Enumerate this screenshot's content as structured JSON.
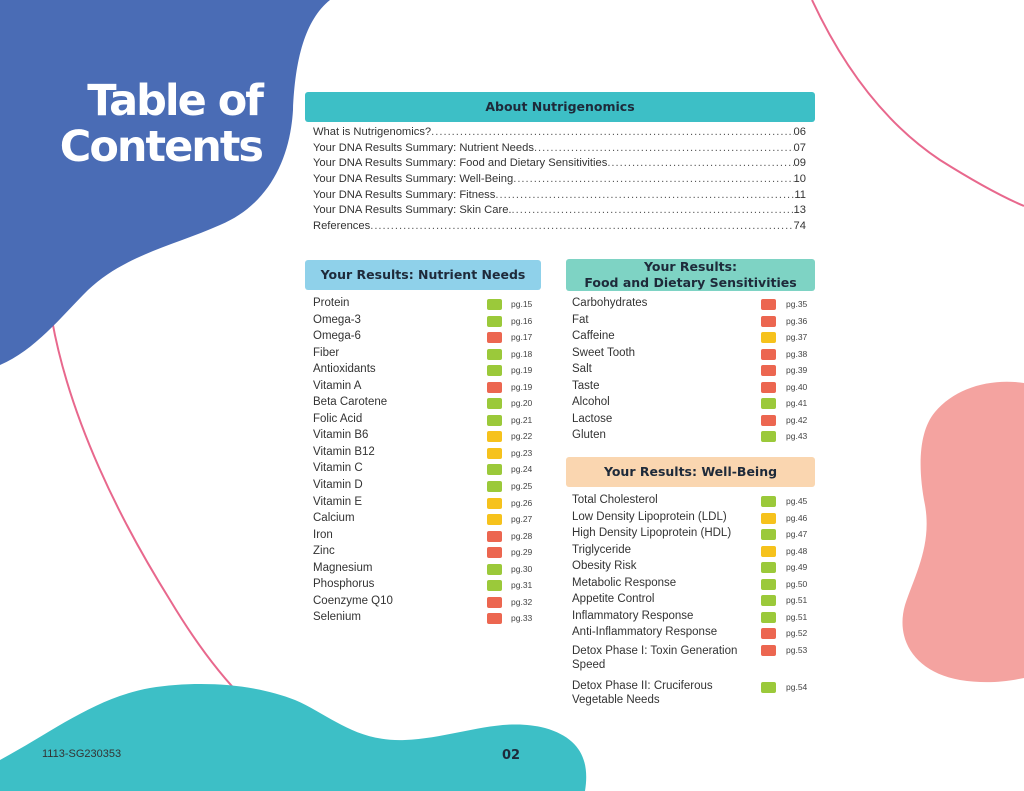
{
  "title": {
    "line1": "Table of",
    "line2": "Contents"
  },
  "colors": {
    "blue_blob": "#4a6cb5",
    "teal_blob": "#3dbfc6",
    "pink_blob": "#f4a3a0",
    "accent_line": "#e8688d",
    "green": "#9bc93a",
    "yellow": "#f6c21c",
    "red": "#ec6650"
  },
  "about": {
    "header": "About Nutrigenomics",
    "items": [
      {
        "label": "What is Nutrigenomics?",
        "page": "06"
      },
      {
        "label": "Your DNA Results Summary: Nutrient Needs",
        "page": "07"
      },
      {
        "label": "Your DNA Results Summary: Food and Dietary Sensitivities",
        "page": "09"
      },
      {
        "label": "Your DNA Results Summary: Well-Being",
        "page": "10"
      },
      {
        "label": "Your DNA Results Summary: Fitness",
        "page": "11"
      },
      {
        "label": "Your DNA Results Summary: Skin Care.",
        "page": "13"
      },
      {
        "label": "References",
        "page": "74"
      }
    ]
  },
  "nutrient": {
    "header": "Your Results: Nutrient Needs",
    "items": [
      {
        "name": "Protein",
        "status": "green",
        "page": "pg.15"
      },
      {
        "name": "Omega-3",
        "status": "green",
        "page": "pg.16"
      },
      {
        "name": "Omega-6",
        "status": "red",
        "page": "pg.17"
      },
      {
        "name": "Fiber",
        "status": "green",
        "page": "pg.18"
      },
      {
        "name": "Antioxidants",
        "status": "green",
        "page": "pg.19"
      },
      {
        "name": "Vitamin A",
        "status": "red",
        "page": "pg.19"
      },
      {
        "name": "Beta Carotene",
        "status": "green",
        "page": "pg.20"
      },
      {
        "name": "Folic Acid",
        "status": "green",
        "page": "pg.21"
      },
      {
        "name": "Vitamin B6",
        "status": "yellow",
        "page": "pg.22"
      },
      {
        "name": "Vitamin B12",
        "status": "yellow",
        "page": "pg.23"
      },
      {
        "name": "Vitamin C",
        "status": "green",
        "page": "pg.24"
      },
      {
        "name": "Vitamin D",
        "status": "green",
        "page": "pg.25"
      },
      {
        "name": "Vitamin E",
        "status": "yellow",
        "page": "pg.26"
      },
      {
        "name": "Calcium",
        "status": "yellow",
        "page": "pg.27"
      },
      {
        "name": "Iron",
        "status": "red",
        "page": "pg.28"
      },
      {
        "name": "Zinc",
        "status": "red",
        "page": "pg.29"
      },
      {
        "name": "Magnesium",
        "status": "green",
        "page": "pg.30"
      },
      {
        "name": "Phosphorus",
        "status": "green",
        "page": "pg.31"
      },
      {
        "name": "Coenzyme Q10",
        "status": "red",
        "page": "pg.32"
      },
      {
        "name": "Selenium",
        "status": "red",
        "page": "pg.33"
      }
    ]
  },
  "food": {
    "header_line1": "Your Results:",
    "header_line2": "Food and Dietary Sensitivities",
    "items": [
      {
        "name": "Carbohydrates",
        "status": "red",
        "page": "pg.35"
      },
      {
        "name": "Fat",
        "status": "red",
        "page": "pg.36"
      },
      {
        "name": "Caffeine",
        "status": "yellow",
        "page": "pg.37"
      },
      {
        "name": "Sweet Tooth",
        "status": "red",
        "page": "pg.38"
      },
      {
        "name": "Salt",
        "status": "red",
        "page": "pg.39"
      },
      {
        "name": "Taste",
        "status": "red",
        "page": "pg.40"
      },
      {
        "name": "Alcohol",
        "status": "green",
        "page": "pg.41"
      },
      {
        "name": "Lactose",
        "status": "red",
        "page": "pg.42"
      },
      {
        "name": "Gluten",
        "status": "green",
        "page": "pg.43"
      }
    ]
  },
  "wellbeing": {
    "header": "Your Results: Well-Being",
    "items": [
      {
        "name": "Total Cholesterol",
        "status": "green",
        "page": "pg.45"
      },
      {
        "name": "Low Density Lipoprotein (LDL)",
        "status": "yellow",
        "page": "pg.46"
      },
      {
        "name": "High Density Lipoprotein (HDL)",
        "status": "green",
        "page": "pg.47"
      },
      {
        "name": "Triglyceride",
        "status": "yellow",
        "page": "pg.48"
      },
      {
        "name": "Obesity Risk",
        "status": "green",
        "page": "pg.49"
      },
      {
        "name": "Metabolic Response",
        "status": "green",
        "page": "pg.50"
      },
      {
        "name": "Appetite Control",
        "status": "green",
        "page": "pg.51"
      },
      {
        "name": "Inflammatory Response",
        "status": "green",
        "page": "pg.51"
      },
      {
        "name": "Anti-Inflammatory Response",
        "status": "red",
        "page": "pg.52"
      },
      {
        "name": "Detox Phase I: Toxin Generation Speed",
        "status": "red",
        "page": "pg.53"
      },
      {
        "name": "Detox Phase II: Cruciferous Vegetable Needs",
        "status": "green",
        "page": "pg.54"
      }
    ]
  },
  "footer": {
    "code": "1113-SG230353",
    "page_number": "02"
  }
}
